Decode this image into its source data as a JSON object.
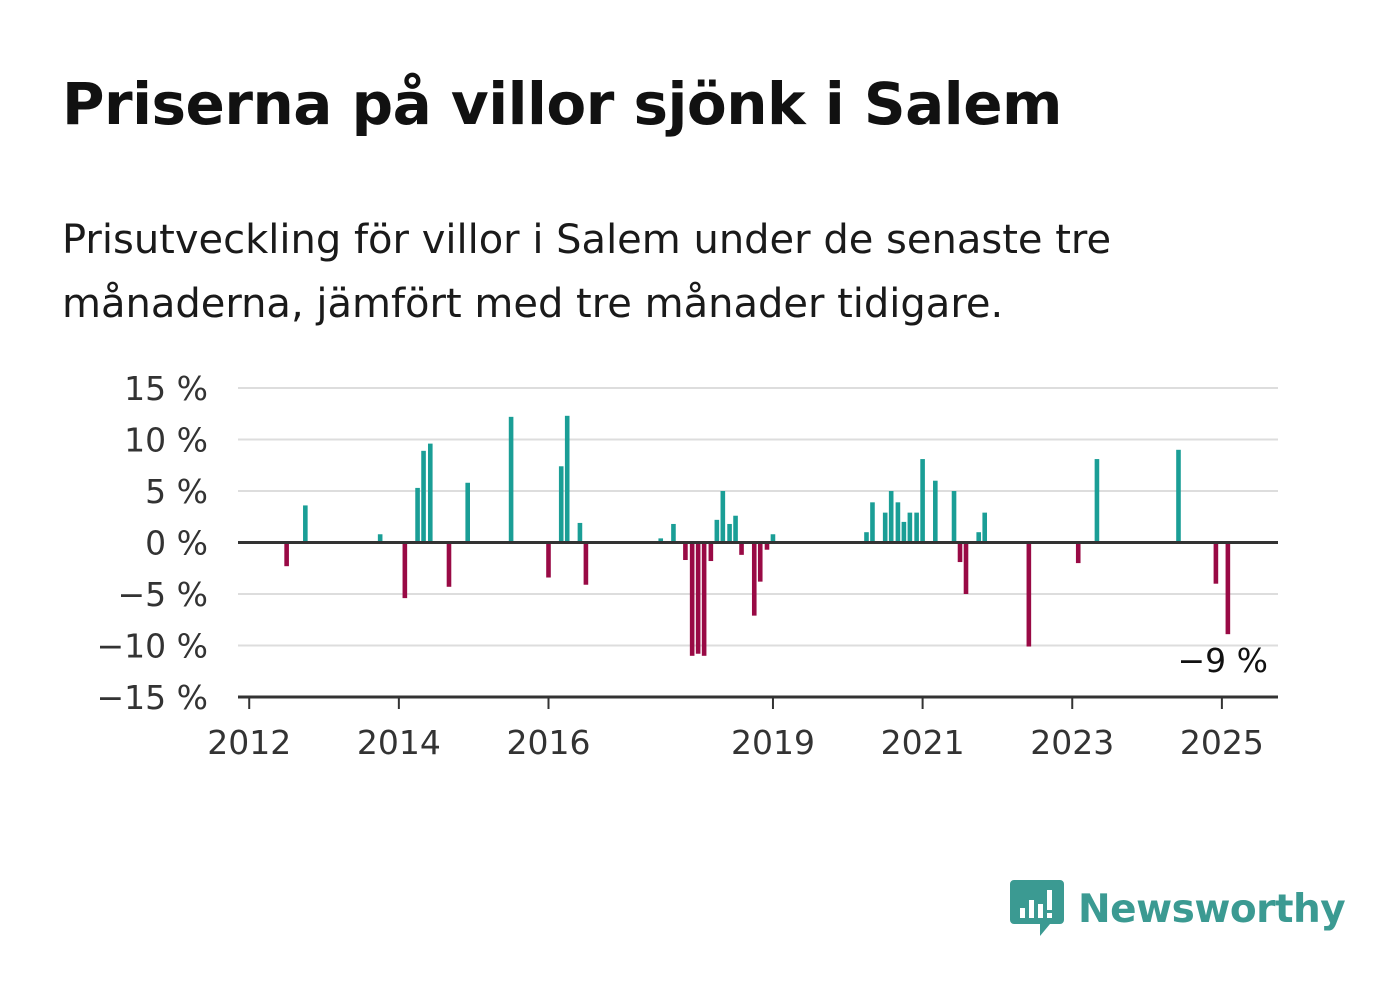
{
  "title": "Priserna på villor sjönk i Salem",
  "subtitle": "Prisutveckling för villor i Salem under de senaste tre månaderna, jämfört med tre månader tidigare.",
  "brand": {
    "name": "Newsworthy",
    "color": "#3b9a92"
  },
  "colors": {
    "positive": "#1a9e96",
    "negative": "#990a45",
    "grid": "#dddddd",
    "axis": "#333333",
    "text": "#333333"
  },
  "chart_data": {
    "type": "bar",
    "y_tick_labels": [
      "15 %",
      "10 %",
      "5 %",
      "0 %",
      "−5 %",
      "−10 %",
      "−15 %"
    ],
    "y_ticks": [
      15,
      10,
      5,
      0,
      -5,
      -10,
      -15
    ],
    "ylim": [
      -15,
      15
    ],
    "x_tick_labels": [
      "2012",
      "2014",
      "2016",
      "2019",
      "2021",
      "2023",
      "2025"
    ],
    "x_ticks": [
      2012,
      2014,
      2016,
      2019,
      2021,
      2023,
      2025
    ],
    "xlim": [
      2011.85,
      2025.75
    ],
    "grid": true,
    "annotation": {
      "text": "−9 %",
      "x": 2025.08,
      "y": -9
    },
    "unit": "%",
    "x": [
      2012.5,
      2012.75,
      2013.75,
      2014.08,
      2014.25,
      2014.33,
      2014.42,
      2014.67,
      2014.92,
      2015.5,
      2016.0,
      2016.17,
      2016.25,
      2016.42,
      2016.5,
      2017.5,
      2017.67,
      2017.83,
      2017.92,
      2018.0,
      2018.08,
      2018.17,
      2018.25,
      2018.33,
      2018.42,
      2018.5,
      2018.58,
      2018.75,
      2018.83,
      2018.92,
      2019.0,
      2020.25,
      2020.33,
      2020.5,
      2020.58,
      2020.67,
      2020.75,
      2020.83,
      2020.92,
      2021.0,
      2021.17,
      2021.42,
      2021.5,
      2021.58,
      2021.75,
      2021.83,
      2022.42,
      2023.08,
      2023.33,
      2024.42,
      2024.92,
      2025.08
    ],
    "values": [
      -2.3,
      3.6,
      0.8,
      -5.4,
      5.3,
      8.9,
      9.6,
      -4.3,
      5.8,
      12.2,
      -3.4,
      7.4,
      12.3,
      1.9,
      -4.1,
      0.4,
      1.8,
      -1.7,
      -11.0,
      -10.8,
      -11.0,
      -1.8,
      2.2,
      5.0,
      1.8,
      2.6,
      -1.2,
      -7.1,
      -3.8,
      -0.7,
      0.8,
      1.0,
      3.9,
      2.9,
      5.0,
      3.9,
      2.0,
      2.9,
      2.9,
      8.1,
      6.0,
      5.0,
      -1.9,
      -5.0,
      1.0,
      2.9,
      -10.1,
      -2.0,
      8.1,
      9.0,
      -4.0,
      -8.9
    ]
  }
}
